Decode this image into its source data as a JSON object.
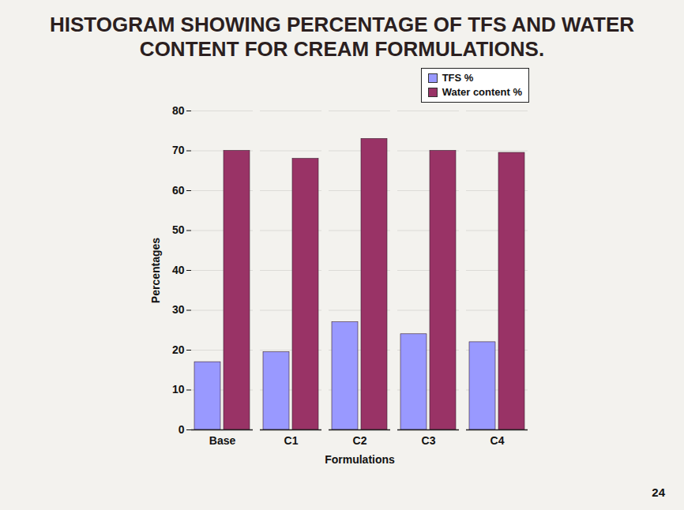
{
  "chart_data": {
    "type": "bar",
    "title": "HISTOGRAM SHOWING PERCENTAGE OF TFS AND WATER CONTENT FOR CREAM FORMULATIONS.",
    "x_label": "Formulations",
    "y_label": "Percentages",
    "categories": [
      "Base",
      "C1",
      "C2",
      "C3",
      "C4"
    ],
    "series": [
      {
        "name": "TFS %",
        "color": "#9999ff",
        "values": [
          17,
          19.5,
          27,
          24,
          22
        ]
      },
      {
        "name": "Water content %",
        "color": "#993366",
        "values": [
          70,
          68,
          73,
          70,
          69.5
        ]
      }
    ],
    "ylim": [
      0,
      80
    ],
    "yticks": [
      0,
      10,
      20,
      30,
      40,
      50,
      60,
      70,
      80
    ],
    "grid": true,
    "legend": "top-right",
    "annotations": [
      "24"
    ]
  }
}
